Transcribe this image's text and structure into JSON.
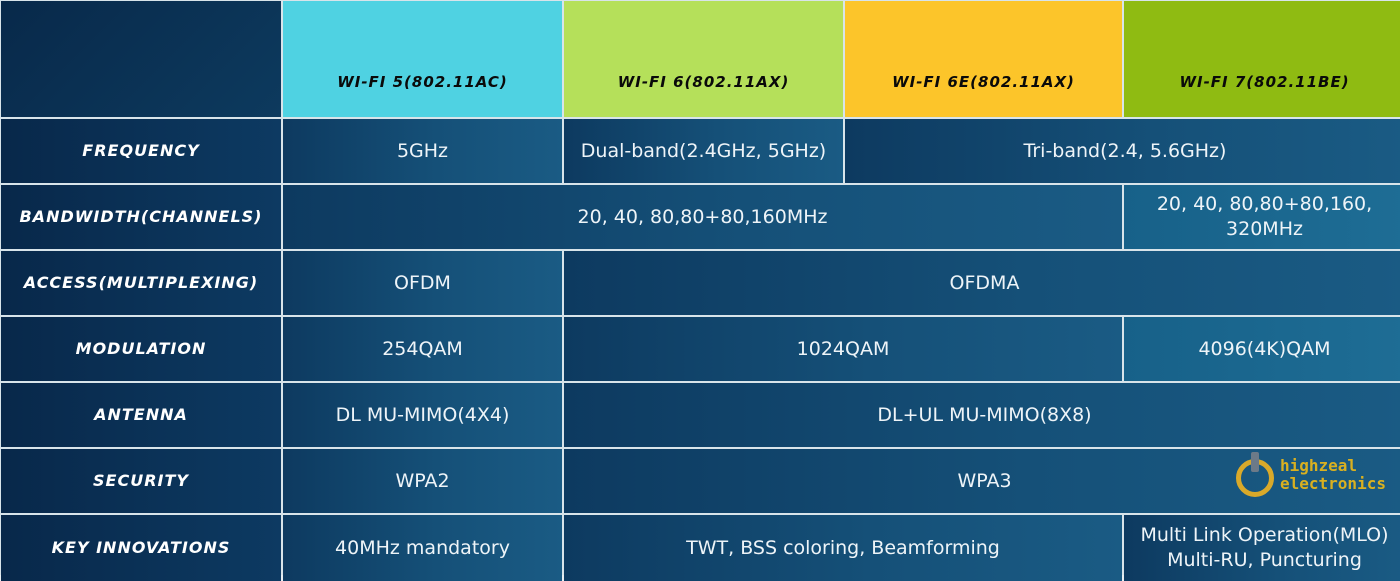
{
  "headers": [
    {
      "label": "",
      "color": ""
    },
    {
      "label": "Wi-Fi 5(802.11ac)",
      "color": "#4fd2e2"
    },
    {
      "label": "Wi-Fi 6(802.11ax)",
      "color": "#b5e05a"
    },
    {
      "label": "Wi-Fi 6E(802.11ax)",
      "color": "#fcc52a"
    },
    {
      "label": "Wi-Fi 7(802.11be)",
      "color": "#8fbb12"
    }
  ],
  "rows": [
    {
      "label": "Frequency",
      "cells": [
        "5GHz",
        "Dual-band(2.4GHz, 5GHz)",
        "Tri-band(2.4, 5.6GHz)"
      ]
    },
    {
      "label": "Bandwidth(Channels)",
      "cells": [
        "20, 40, 80,80+80,160MHz",
        "20, 40, 80,80+80,160, 320MHz"
      ]
    },
    {
      "label": "Access(Multiplexing)",
      "cells": [
        "OFDM",
        "OFDMA"
      ]
    },
    {
      "label": "Modulation",
      "cells": [
        "254QAM",
        "1024QAM",
        "4096(4K)QAM"
      ]
    },
    {
      "label": "Antenna",
      "cells": [
        "DL MU-MIMO(4X4)",
        "DL+UL MU-MIMO(8X8)"
      ]
    },
    {
      "label": "Security",
      "cells": [
        "WPA2",
        "WPA3"
      ]
    },
    {
      "label": "Key Innovations",
      "cells": [
        "40MHz mandatory",
        "TWT, BSS coloring, Beamforming",
        "Multi Link Operation(MLO) Multi-RU, Puncturing"
      ]
    }
  ],
  "watermark": {
    "text": "highzeal electronics",
    "icon": "power-icon"
  }
}
